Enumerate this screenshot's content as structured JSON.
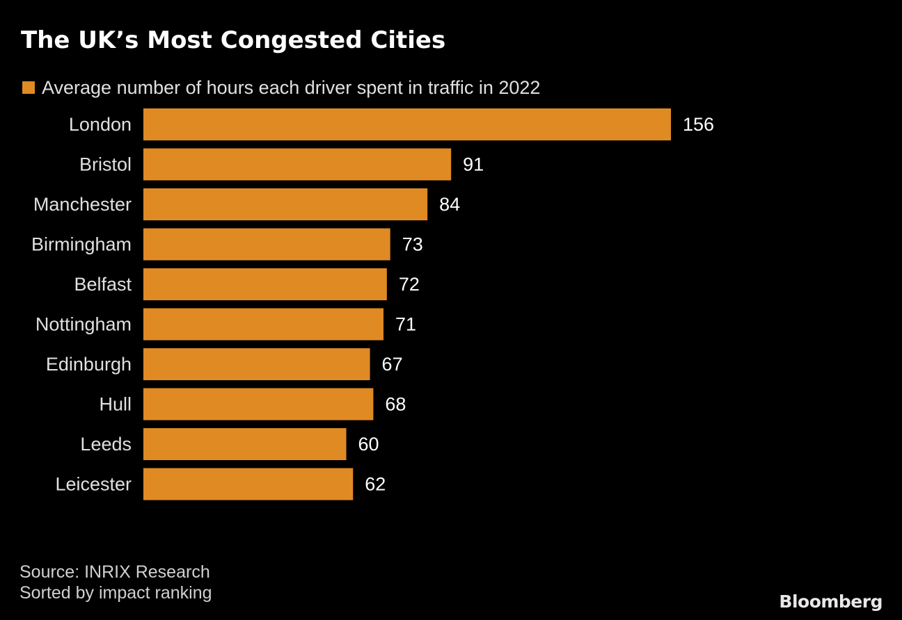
{
  "chart_data": {
    "type": "bar",
    "orientation": "horizontal",
    "title": "The UK’s Most Congested Cities",
    "legend": [
      "Average number of hours each driver spent in traffic in 2022"
    ],
    "categories": [
      "London",
      "Bristol",
      "Manchester",
      "Birmingham",
      "Belfast",
      "Nottingham",
      "Edinburgh",
      "Hull",
      "Leeds",
      "Leicester"
    ],
    "series": [
      {
        "name": "Average number of hours each driver spent in traffic in 2022",
        "values": [
          156,
          91,
          84,
          73,
          72,
          71,
          67,
          68,
          60,
          62
        ]
      }
    ],
    "xlim": [
      0,
      156
    ],
    "grid": false,
    "bar_color": "#e08a24"
  },
  "footer": {
    "source": "Source: INRIX Research",
    "note": "Sorted by impact ranking"
  },
  "brand": "Bloomberg"
}
